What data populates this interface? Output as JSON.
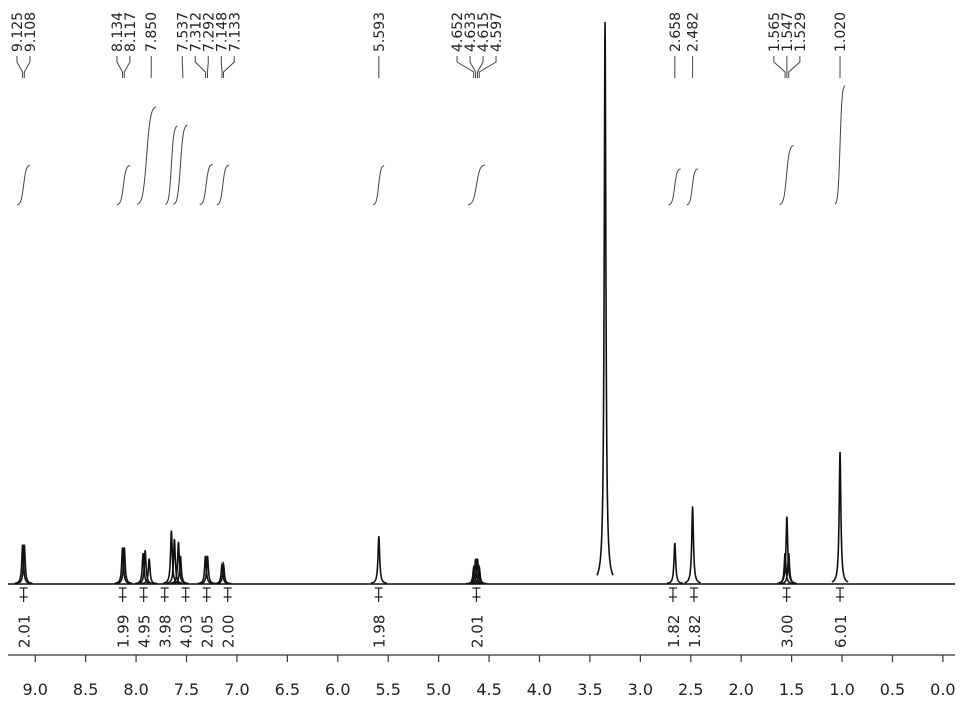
{
  "chart_data": {
    "type": "spectrum",
    "xlim": [
      9.27,
      -0.12
    ],
    "ylim": [
      0,
      100
    ],
    "xticks": [
      {
        "value": 9,
        "label": "9.0"
      },
      8.5,
      {
        "value": 8,
        "label": "8.0"
      },
      7.5,
      {
        "value": 7,
        "label": "7.0"
      },
      6.5,
      {
        "value": 6,
        "label": "6.0"
      },
      5.5,
      {
        "value": 5,
        "label": "5.0"
      },
      4.5,
      {
        "value": 4,
        "label": "4.0"
      },
      3.5,
      {
        "value": 3,
        "label": "3.0"
      },
      2.5,
      {
        "value": 2,
        "label": "2.0"
      },
      1.5,
      {
        "value": 1,
        "label": "1.0"
      },
      0.5,
      {
        "value": 0,
        "label": "0.0"
      }
    ],
    "color": "#111111",
    "peaks": [
      {
        "ppm": 9.125,
        "height": 7
      },
      {
        "ppm": 9.108,
        "height": 7
      },
      {
        "ppm": 8.134,
        "height": 6.5
      },
      {
        "ppm": 8.117,
        "height": 6.5
      },
      {
        "ppm": 7.93,
        "height": 5.5
      },
      {
        "ppm": 7.91,
        "height": 6
      },
      {
        "ppm": 7.87,
        "height": 4.5
      },
      {
        "ppm": 7.65,
        "height": 9.5
      },
      {
        "ppm": 7.62,
        "height": 8
      },
      {
        "ppm": 7.58,
        "height": 7.5
      },
      {
        "ppm": 7.56,
        "height": 5
      },
      {
        "ppm": 7.312,
        "height": 5
      },
      {
        "ppm": 7.292,
        "height": 5
      },
      {
        "ppm": 7.148,
        "height": 3.5
      },
      {
        "ppm": 7.133,
        "height": 3.5
      },
      {
        "ppm": 5.593,
        "height": 8.5
      },
      {
        "ppm": 4.652,
        "height": 3
      },
      {
        "ppm": 4.633,
        "height": 4.5
      },
      {
        "ppm": 4.615,
        "height": 4.5
      },
      {
        "ppm": 4.597,
        "height": 3
      },
      {
        "ppm": 3.35,
        "height": 100
      },
      {
        "ppm": 2.658,
        "height": 7.3
      },
      {
        "ppm": 2.482,
        "height": 13.8
      },
      {
        "ppm": 1.565,
        "height": 5.5
      },
      {
        "ppm": 1.547,
        "height": 12
      },
      {
        "ppm": 1.529,
        "height": 5.5
      },
      {
        "ppm": 1.02,
        "height": 23.5
      }
    ],
    "peak_labels": [
      {
        "value": 9.125,
        "label": "9.125"
      },
      {
        "value": 9.108,
        "label": "9.108"
      },
      {
        "value": 8.134,
        "label": "8.134"
      },
      {
        "value": 8.117,
        "label": "8.117"
      },
      {
        "value": 7.85,
        "label": "7.850"
      },
      {
        "value": 7.537,
        "label": "7.537"
      },
      {
        "value": 7.312,
        "label": "7.312"
      },
      {
        "value": 7.292,
        "label": "7.292"
      },
      {
        "value": 7.148,
        "label": "7.148"
      },
      {
        "value": 7.133,
        "label": "7.133"
      },
      {
        "value": 5.593,
        "label": "5.593"
      },
      {
        "value": 4.652,
        "label": "4.652"
      },
      {
        "value": 4.633,
        "label": "4.633"
      },
      {
        "value": 4.615,
        "label": "4.615"
      },
      {
        "value": 4.597,
        "label": "4.597"
      },
      {
        "value": 2.658,
        "label": "2.658"
      },
      {
        "value": 2.482,
        "label": "2.482"
      },
      {
        "value": 1.565,
        "label": "1.565"
      },
      {
        "value": 1.547,
        "label": "1.547"
      },
      {
        "value": 1.529,
        "label": "1.529"
      },
      {
        "value": 1.02,
        "label": "1.020"
      }
    ],
    "integrals": [
      {
        "from": 9.15,
        "to": 9.08,
        "value": 2.01,
        "label": "2.01"
      },
      {
        "from": 8.16,
        "to": 8.09,
        "value": 1.99,
        "label": "1.99"
      },
      {
        "from": 7.96,
        "to": 7.83,
        "value": 4.95,
        "label": "4.95"
      },
      {
        "from": 7.68,
        "to": 7.62,
        "value": 3.98,
        "label": "3.98"
      },
      {
        "from": 7.6,
        "to": 7.52,
        "value": 4.03,
        "label": "4.03"
      },
      {
        "from": 7.34,
        "to": 7.27,
        "value": 2.05,
        "label": "2.05"
      },
      {
        "from": 7.17,
        "to": 7.11,
        "value": 2,
        "label": "2.00"
      },
      {
        "from": 5.62,
        "to": 5.57,
        "value": 1.98,
        "label": "1.98"
      },
      {
        "from": 4.68,
        "to": 4.57,
        "value": 2.01,
        "label": "2.01"
      },
      {
        "from": 2.69,
        "to": 2.63,
        "value": 1.82,
        "label": "1.82"
      },
      {
        "from": 2.51,
        "to": 2.46,
        "value": 1.82,
        "label": "1.82"
      },
      {
        "from": 1.59,
        "to": 1.51,
        "value": 3,
        "label": "3.00"
      },
      {
        "from": 1.04,
        "to": 1.0,
        "value": 6.01,
        "label": "6.01"
      }
    ]
  }
}
